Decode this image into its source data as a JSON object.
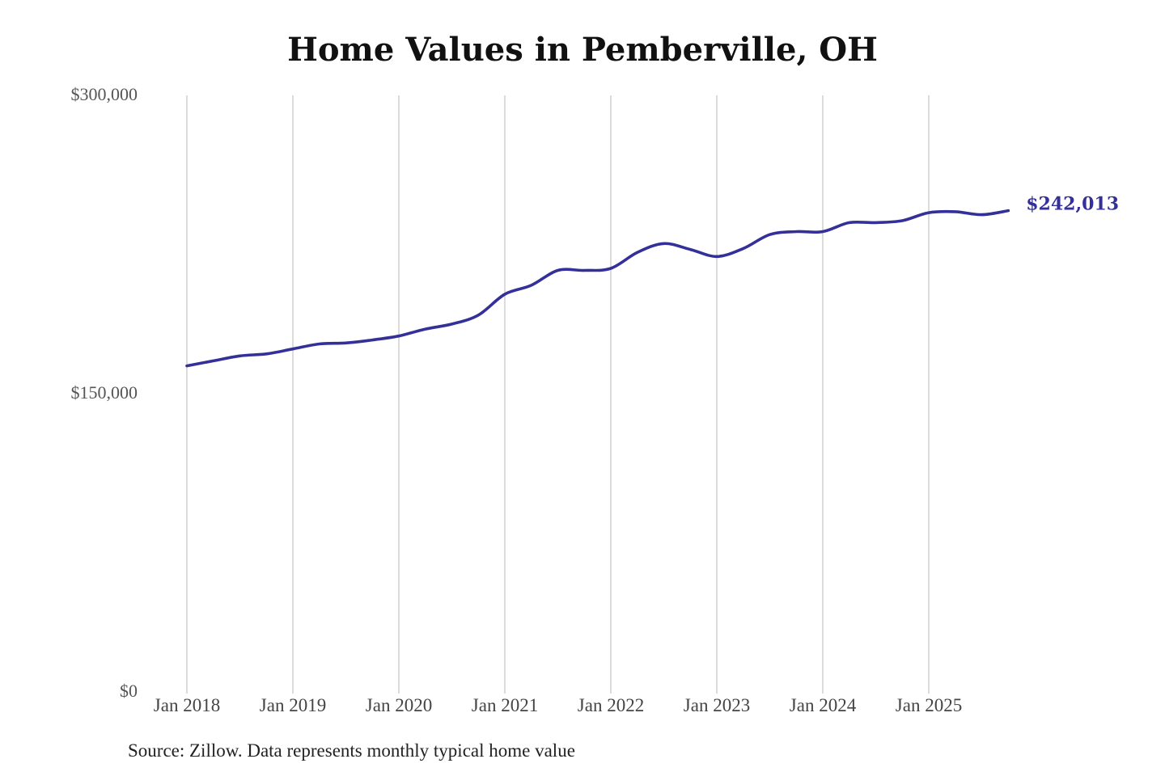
{
  "chart_data": {
    "type": "line",
    "title": "Home Values in Pemberville, OH",
    "xlabel": "",
    "ylabel": "",
    "ylim": [
      0,
      300000
    ],
    "y_ticks": [
      {
        "value": 300000,
        "label": "$300,000"
      },
      {
        "value": 150000,
        "label": "$150,000"
      },
      {
        "value": 0,
        "label": "$0"
      }
    ],
    "x_ticks": [
      {
        "value": "2018-01",
        "label": "Jan 2018"
      },
      {
        "value": "2019-01",
        "label": "Jan 2019"
      },
      {
        "value": "2020-01",
        "label": "Jan 2020"
      },
      {
        "value": "2021-01",
        "label": "Jan 2021"
      },
      {
        "value": "2022-01",
        "label": "Jan 2022"
      },
      {
        "value": "2023-01",
        "label": "Jan 2023"
      },
      {
        "value": "2024-01",
        "label": "Jan 2024"
      },
      {
        "value": "2025-01",
        "label": "Jan 2025"
      }
    ],
    "grid": "vertical",
    "line_color": "#34309a",
    "series": [
      {
        "points": [
          {
            "x": "2018-01",
            "y": 164000
          },
          {
            "x": "2018-04",
            "y": 166500
          },
          {
            "x": "2018-07",
            "y": 169000
          },
          {
            "x": "2018-10",
            "y": 170000
          },
          {
            "x": "2019-01",
            "y": 172500
          },
          {
            "x": "2019-04",
            "y": 175000
          },
          {
            "x": "2019-07",
            "y": 175500
          },
          {
            "x": "2019-10",
            "y": 177000
          },
          {
            "x": "2020-01",
            "y": 179000
          },
          {
            "x": "2020-04",
            "y": 182500
          },
          {
            "x": "2020-07",
            "y": 185000
          },
          {
            "x": "2020-10",
            "y": 189500
          },
          {
            "x": "2021-01",
            "y": 200000
          },
          {
            "x": "2021-04",
            "y": 204500
          },
          {
            "x": "2021-07",
            "y": 212000
          },
          {
            "x": "2021-10",
            "y": 212000
          },
          {
            "x": "2022-01",
            "y": 213000
          },
          {
            "x": "2022-04",
            "y": 221000
          },
          {
            "x": "2022-07",
            "y": 225500
          },
          {
            "x": "2022-10",
            "y": 222500
          },
          {
            "x": "2023-01",
            "y": 219000
          },
          {
            "x": "2023-04",
            "y": 223000
          },
          {
            "x": "2023-07",
            "y": 230000
          },
          {
            "x": "2023-10",
            "y": 231500
          },
          {
            "x": "2024-01",
            "y": 231500
          },
          {
            "x": "2024-04",
            "y": 236000
          },
          {
            "x": "2024-07",
            "y": 236000
          },
          {
            "x": "2024-10",
            "y": 237000
          },
          {
            "x": "2025-01",
            "y": 241000
          },
          {
            "x": "2025-04",
            "y": 241500
          },
          {
            "x": "2025-07",
            "y": 240000
          },
          {
            "x": "2025-10",
            "y": 242013
          }
        ]
      }
    ],
    "end_label": "$242,013"
  },
  "footer": {
    "source": "Source: Zillow. Data represents monthly typical home value"
  }
}
